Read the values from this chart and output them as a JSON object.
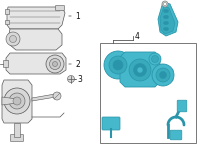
{
  "background_color": "#ffffff",
  "component_color_cyan": "#45b8cc",
  "component_color_cyan_dark": "#2a95aa",
  "component_color_cyan_mid": "#38aabc",
  "line_color": "#444444",
  "outline_color": "#555555",
  "gray_fill": "#e6e6e6",
  "gray_dark": "#cccccc",
  "gray_mid": "#d8d8d8",
  "box_color": "#888888",
  "label_color": "#111111",
  "figsize": [
    2.0,
    1.47
  ],
  "dpi": 100
}
